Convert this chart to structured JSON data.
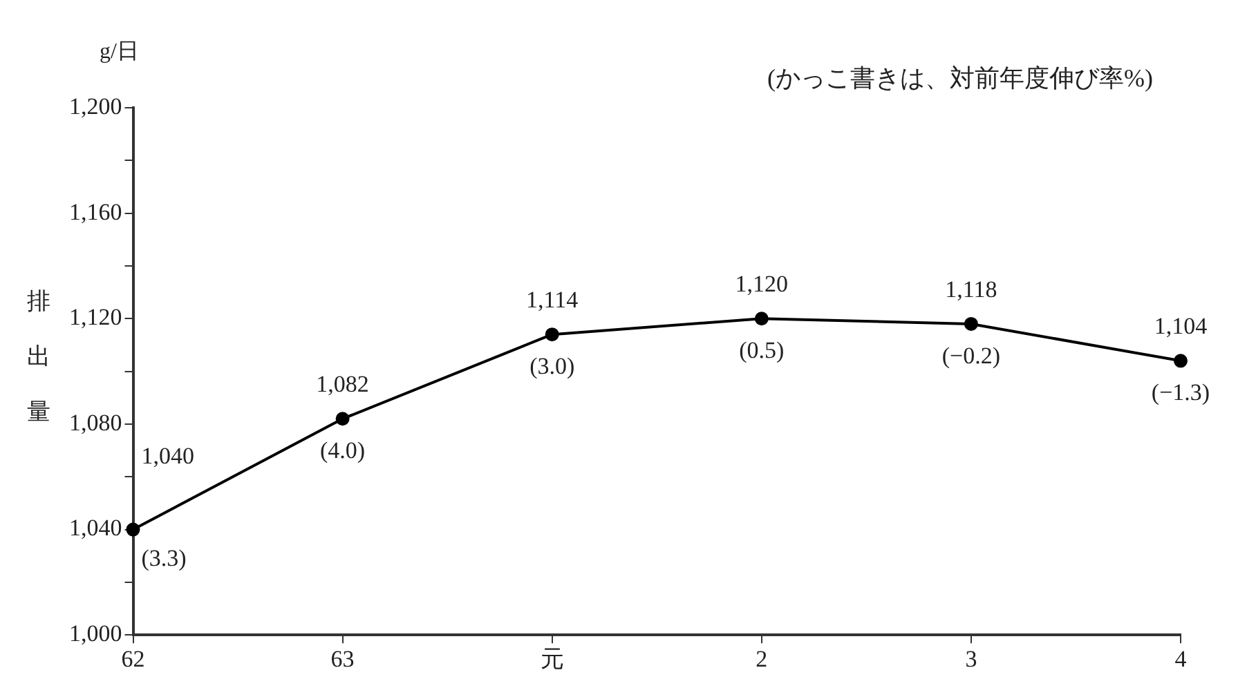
{
  "chart_data": {
    "type": "line",
    "ylabel": "排出量",
    "categories": [
      "62",
      "63",
      "元",
      "2",
      "3",
      "4"
    ],
    "series": [
      {
        "color": "#000000",
        "values": [
          1040,
          1082,
          1114,
          1120,
          1118,
          1104
        ],
        "value_labels": [
          "1,040",
          "1,082",
          "1,114",
          "1,120",
          "1,118",
          "1,104"
        ]
      }
    ],
    "ylim": [
      1000,
      1200
    ],
    "yticks": [
      {
        "value": 1000,
        "label": "1,000"
      },
      {
        "value": 1020,
        "label": null
      },
      {
        "value": 1040,
        "label": "1,040"
      },
      {
        "value": 1060,
        "label": null
      },
      {
        "value": 1080,
        "label": "1,080"
      },
      {
        "value": 1100,
        "label": null
      },
      {
        "value": 1120,
        "label": "1,120"
      },
      {
        "value": 1140,
        "label": null
      },
      {
        "value": 1160,
        "label": "1,160"
      },
      {
        "value": 1180,
        "label": null
      },
      {
        "value": 1200,
        "label": "1,200"
      }
    ],
    "annotations": [
      "g/日",
      "(かっこ書きは、対前年度伸び率%)",
      {
        "text": "(3.3)",
        "x": "62",
        "y": 1040
      },
      {
        "text": "(4.0)",
        "x": "63",
        "y": 1082
      },
      {
        "text": "(3.0)",
        "x": "元",
        "y": 1114
      },
      {
        "text": "(0.5)",
        "x": "2",
        "y": 1120
      },
      {
        "text": "(−0.2)",
        "x": "3",
        "y": 1118
      },
      {
        "text": "(−1.3)",
        "x": "4",
        "y": 1104
      }
    ],
    "grid": false,
    "legend": false,
    "marker": "circle",
    "line_style": "solid"
  }
}
